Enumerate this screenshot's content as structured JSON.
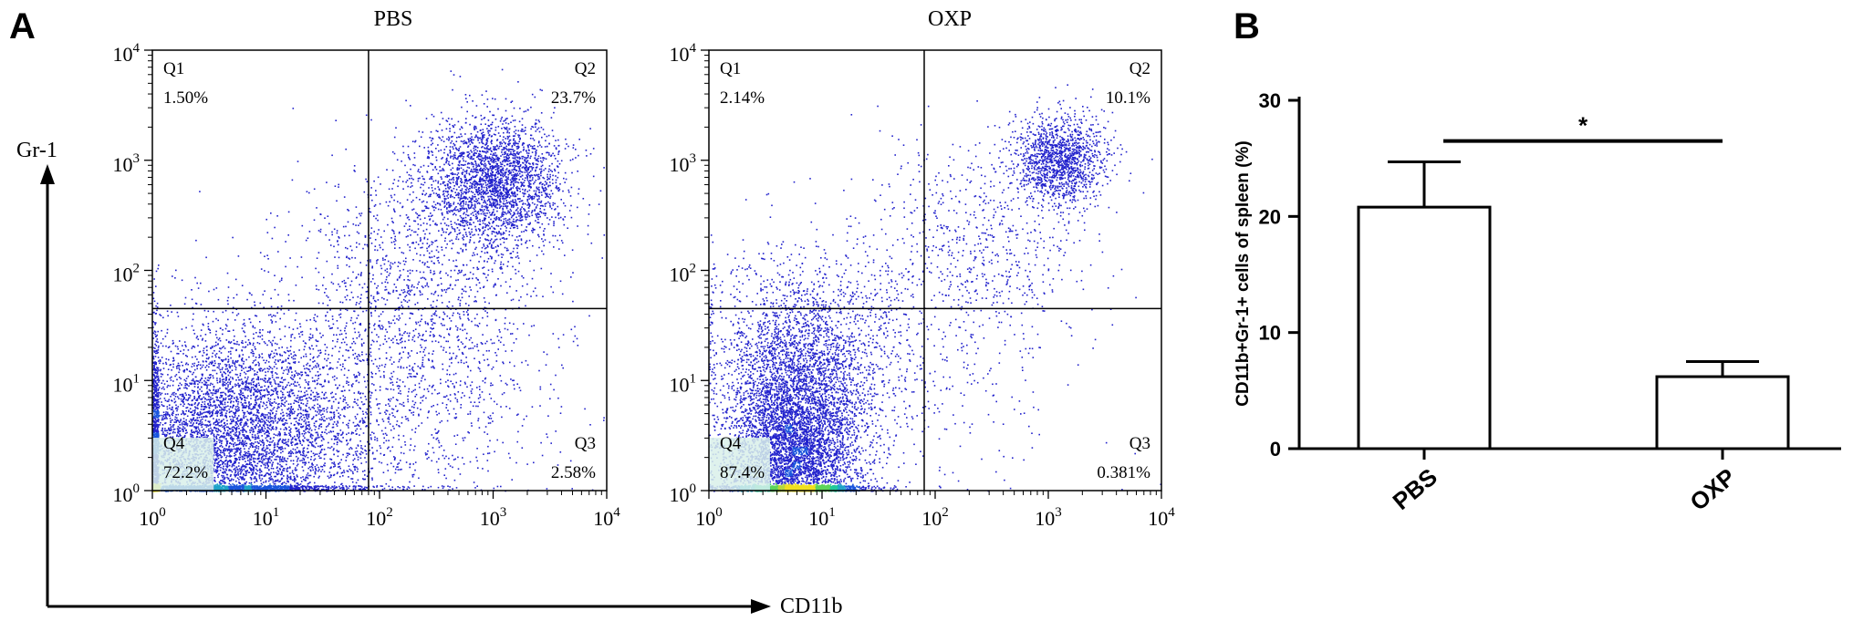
{
  "panel_labels": {
    "a": "A",
    "b": "B"
  },
  "flow_axes": {
    "y_label": "Gr-1",
    "x_label": "CD11b"
  },
  "chart_data": [
    {
      "type": "scatter",
      "title": "PBS",
      "x_scale": "log",
      "y_scale": "log",
      "xlim": [
        1,
        10000
      ],
      "ylim": [
        1,
        10000
      ],
      "x_ticks": [
        {
          "base": "10",
          "exp": "0"
        },
        {
          "base": "10",
          "exp": "1"
        },
        {
          "base": "10",
          "exp": "2"
        },
        {
          "base": "10",
          "exp": "3"
        },
        {
          "base": "10",
          "exp": "4"
        }
      ],
      "y_ticks": [
        {
          "base": "10",
          "exp": "0"
        },
        {
          "base": "10",
          "exp": "1"
        },
        {
          "base": "10",
          "exp": "2"
        },
        {
          "base": "10",
          "exp": "3"
        },
        {
          "base": "10",
          "exp": "4"
        }
      ],
      "gate": {
        "x": 80,
        "y": 45
      },
      "quadrants": [
        {
          "name": "Q1",
          "percent": "1.50%"
        },
        {
          "name": "Q2",
          "percent": "23.7%"
        },
        {
          "name": "Q3",
          "percent": "2.58%"
        },
        {
          "name": "Q4",
          "percent": "72.2%"
        }
      ],
      "populations": [
        {
          "log_x": 0.55,
          "log_y": 0.35,
          "sx": 0.55,
          "sy": 0.55,
          "n": 5200
        },
        {
          "log_x": 1.2,
          "log_y": 0.7,
          "sx": 0.6,
          "sy": 0.45,
          "n": 1800
        },
        {
          "log_x": 3.0,
          "log_y": 2.8,
          "sx": 0.3,
          "sy": 0.3,
          "n": 2600
        },
        {
          "log_x": 2.3,
          "log_y": 1.9,
          "sx": 0.55,
          "sy": 0.55,
          "n": 1200
        },
        {
          "log_x": 2.6,
          "log_y": 0.9,
          "sx": 0.5,
          "sy": 0.5,
          "n": 500
        }
      ]
    },
    {
      "type": "scatter",
      "title": "OXP",
      "x_scale": "log",
      "y_scale": "log",
      "xlim": [
        1,
        10000
      ],
      "ylim": [
        1,
        10000
      ],
      "x_ticks": [
        {
          "base": "10",
          "exp": "0"
        },
        {
          "base": "10",
          "exp": "1"
        },
        {
          "base": "10",
          "exp": "2"
        },
        {
          "base": "10",
          "exp": "3"
        },
        {
          "base": "10",
          "exp": "4"
        }
      ],
      "y_ticks": [
        {
          "base": "10",
          "exp": "0"
        },
        {
          "base": "10",
          "exp": "1"
        },
        {
          "base": "10",
          "exp": "2"
        },
        {
          "base": "10",
          "exp": "3"
        },
        {
          "base": "10",
          "exp": "4"
        }
      ],
      "gate": {
        "x": 80,
        "y": 45
      },
      "quadrants": [
        {
          "name": "Q1",
          "percent": "2.14%"
        },
        {
          "name": "Q2",
          "percent": "10.1%"
        },
        {
          "name": "Q3",
          "percent": "0.381%"
        },
        {
          "name": "Q4",
          "percent": "87.4%"
        }
      ],
      "populations": [
        {
          "log_x": 0.75,
          "log_y": 0.35,
          "sx": 0.3,
          "sy": 0.55,
          "n": 6500
        },
        {
          "log_x": 0.9,
          "log_y": 1.3,
          "sx": 0.45,
          "sy": 0.45,
          "n": 1500
        },
        {
          "log_x": 3.1,
          "log_y": 3.0,
          "sx": 0.2,
          "sy": 0.2,
          "n": 1400
        },
        {
          "log_x": 2.3,
          "log_y": 2.2,
          "sx": 0.5,
          "sy": 0.5,
          "n": 700
        },
        {
          "log_x": 2.0,
          "log_y": 1.0,
          "sx": 0.6,
          "sy": 0.6,
          "n": 250
        }
      ]
    },
    {
      "type": "bar",
      "categories": [
        "PBS",
        "OXP"
      ],
      "values": [
        20.8,
        6.2
      ],
      "errors": [
        3.9,
        1.3
      ],
      "ylabel": "CD11b+Gr-1+ cells of spleen (%)",
      "xlabel": "",
      "ylim": [
        0,
        30
      ],
      "yticks": [
        "0",
        "10",
        "20",
        "30"
      ],
      "significance": {
        "between": [
          "PBS",
          "OXP"
        ],
        "label": "*"
      }
    }
  ]
}
